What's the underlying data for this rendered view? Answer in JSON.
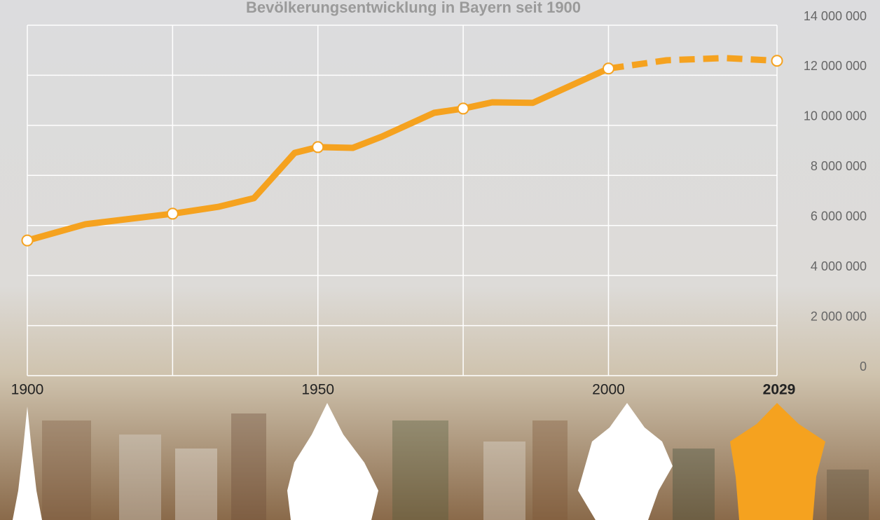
{
  "chart_data": {
    "type": "line",
    "title": "Bevölkerungsentwicklung in Bayern seit 1900",
    "x": [
      1900,
      1910,
      1925,
      1933,
      1939,
      1946,
      1950,
      1956,
      1961,
      1970,
      1975,
      1980,
      1987,
      2000,
      2010,
      2020,
      2029
    ],
    "series": [
      {
        "color": "#f5a21f",
        "style": "solid",
        "values": [
          5400000,
          6050000,
          6470000,
          6750000,
          7090000,
          8900000,
          9130000,
          9100000,
          9550000,
          10500000,
          10670000,
          10920000,
          10900000,
          12270000,
          null,
          null,
          null
        ]
      },
      {
        "color": "#f5a21f",
        "style": "dashed",
        "values": [
          null,
          null,
          null,
          null,
          null,
          null,
          null,
          null,
          null,
          null,
          null,
          null,
          null,
          12270000,
          12600000,
          12690000,
          12580000
        ]
      }
    ],
    "xlim": [
      1900,
      2029
    ],
    "xticks": [
      1900,
      {
        "value": 1925,
        "label": null
      },
      1950,
      {
        "value": 1975,
        "label": null
      },
      2000,
      {
        "value": 2029,
        "label": "2029",
        "bold": true
      }
    ],
    "ylim": [
      0,
      14000000
    ],
    "yticks": [
      0,
      {
        "value": 2000000,
        "label": "2 000 000"
      },
      {
        "value": 4000000,
        "label": "4 000 000"
      },
      {
        "value": 6000000,
        "label": "6 000 000"
      },
      {
        "value": 8000000,
        "label": "8 000 000"
      },
      {
        "value": 10000000,
        "label": "10 000 000"
      },
      {
        "value": 12000000,
        "label": "12 000 000"
      },
      {
        "value": 14000000,
        "label": "14 000 000"
      }
    ],
    "grid": true
  }
}
